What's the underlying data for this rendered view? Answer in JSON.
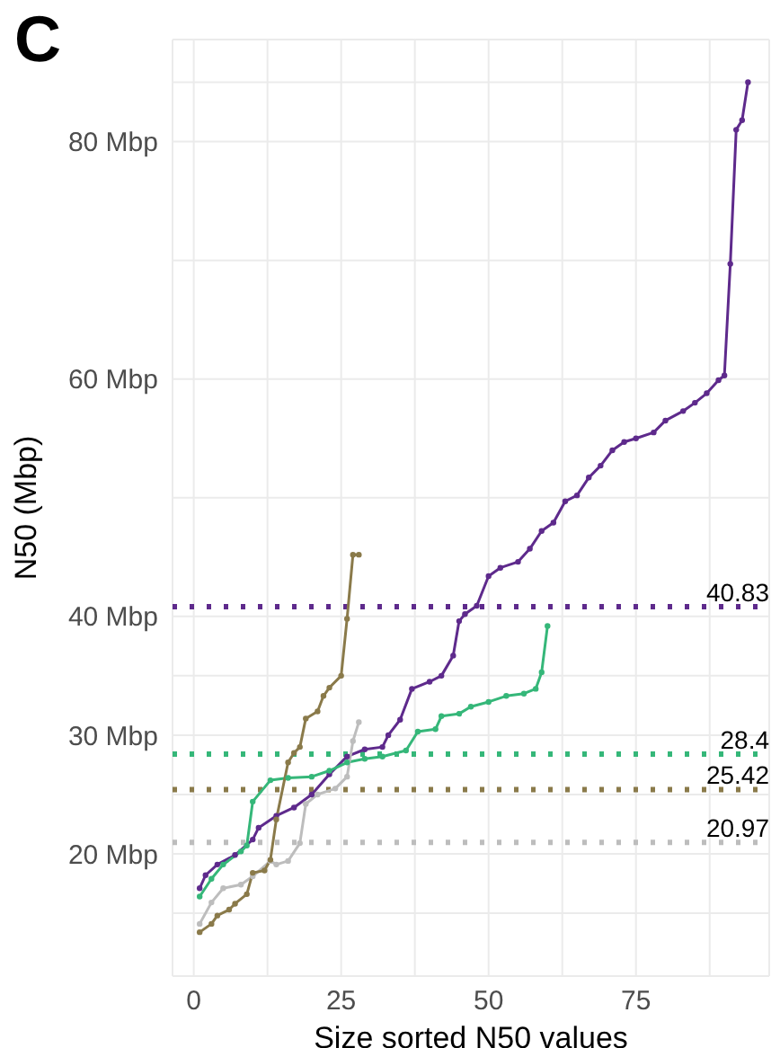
{
  "chart_data": {
    "type": "line",
    "xlabel": "Size sorted N50 values",
    "ylabel": "N50 (Mbp)",
    "annotations": [
      "C"
    ],
    "xlim": [
      -3.6,
      97.6
    ],
    "xticks": [
      0,
      {
        "value": 12.5,
        "label": null
      },
      25,
      {
        "value": 37.5,
        "label": null
      },
      50,
      {
        "value": 62.5,
        "label": null
      },
      75,
      {
        "value": 87.5,
        "label": null
      }
    ],
    "ylim": [
      9.7,
      88.6
    ],
    "yticks": [
      {
        "value": 15,
        "label": null
      },
      {
        "value": 20,
        "label": "20 Mbp"
      },
      {
        "value": 25,
        "label": null
      },
      {
        "value": 30,
        "label": "30 Mbp"
      },
      {
        "value": 35,
        "label": null
      },
      {
        "value": 40,
        "label": "40 Mbp"
      },
      {
        "value": 50,
        "label": null
      },
      {
        "value": 60,
        "label": "60 Mbp"
      },
      {
        "value": 70,
        "label": null
      },
      {
        "value": 80,
        "label": "80 Mbp"
      },
      {
        "value": 85,
        "label": null
      }
    ],
    "grid": true,
    "marker": "circle",
    "line_style": "solid",
    "series": [
      {
        "color": "#5e2a8c",
        "x": [
          1,
          2,
          4,
          7,
          10,
          11,
          14,
          17,
          20,
          23,
          26,
          29,
          32,
          33,
          35,
          37,
          40,
          42,
          44,
          45,
          46,
          48,
          50,
          52,
          55,
          57,
          59,
          61,
          63,
          65,
          67,
          69,
          71,
          73,
          75,
          78,
          80,
          83,
          85,
          87,
          89,
          90,
          91,
          92,
          93,
          94
        ],
        "values": [
          17.1,
          18.2,
          19.1,
          19.9,
          21.2,
          22.2,
          23.2,
          23.9,
          25,
          26.7,
          28.2,
          28.8,
          29,
          30,
          31.3,
          33.9,
          34.5,
          35,
          36.7,
          39.6,
          40.2,
          40.9,
          43.4,
          44.1,
          44.6,
          45.7,
          47.2,
          47.9,
          49.7,
          50.2,
          51.7,
          52.7,
          54,
          54.7,
          55,
          55.5,
          56.5,
          57.3,
          58,
          58.8,
          59.9,
          60.3,
          69.7,
          81,
          81.8,
          85
        ]
      },
      {
        "color": "#35b779",
        "x": [
          1,
          3,
          5,
          8,
          9,
          10,
          13,
          16,
          20,
          23,
          26,
          29,
          32,
          36,
          38,
          41,
          42,
          45,
          47,
          50,
          53,
          56,
          58,
          59,
          60
        ],
        "values": [
          16.4,
          17.9,
          19.1,
          20.2,
          20.7,
          24.4,
          26.2,
          26.4,
          26.5,
          27,
          27.7,
          28,
          28.2,
          28.7,
          30.3,
          30.5,
          31.6,
          31.8,
          32.4,
          32.8,
          33.3,
          33.5,
          33.9,
          35.3,
          39.2
        ]
      },
      {
        "color": "#bdbdbd",
        "x": [
          1,
          3,
          5,
          8,
          10,
          13,
          14,
          16,
          18,
          19,
          21,
          24,
          26,
          27,
          28
        ],
        "values": [
          14.1,
          15.9,
          17.1,
          17.4,
          18.1,
          19.4,
          19.1,
          19.4,
          20.9,
          24.2,
          25,
          25.5,
          26.5,
          29.5,
          31.1
        ]
      },
      {
        "color": "#8a7a4a",
        "x": [
          1,
          3,
          4,
          6,
          7,
          9,
          10,
          12,
          13,
          14,
          16,
          17,
          18,
          19,
          21,
          22,
          23,
          25,
          26,
          27,
          28
        ],
        "values": [
          13.4,
          14.1,
          14.8,
          15.3,
          15.8,
          16.6,
          18.4,
          18.6,
          19.5,
          22.9,
          27.7,
          28.5,
          29,
          31.4,
          32,
          33.3,
          34,
          35,
          39.8,
          45.2,
          45.2
        ]
      }
    ],
    "ref_lines": [
      {
        "axis": "y",
        "value": 40.83,
        "label": "40.83",
        "color": "#5e2a8c",
        "line_style": "dotted"
      },
      {
        "axis": "y",
        "value": 28.4,
        "label": "28.4",
        "color": "#35b779",
        "line_style": "dotted"
      },
      {
        "axis": "y",
        "value": 25.42,
        "label": "25.42",
        "color": "#8a7a4a",
        "line_style": "dotted"
      },
      {
        "axis": "y",
        "value": 20.97,
        "label": "20.97",
        "color": "#bdbdbd",
        "line_style": "dotted"
      }
    ]
  }
}
